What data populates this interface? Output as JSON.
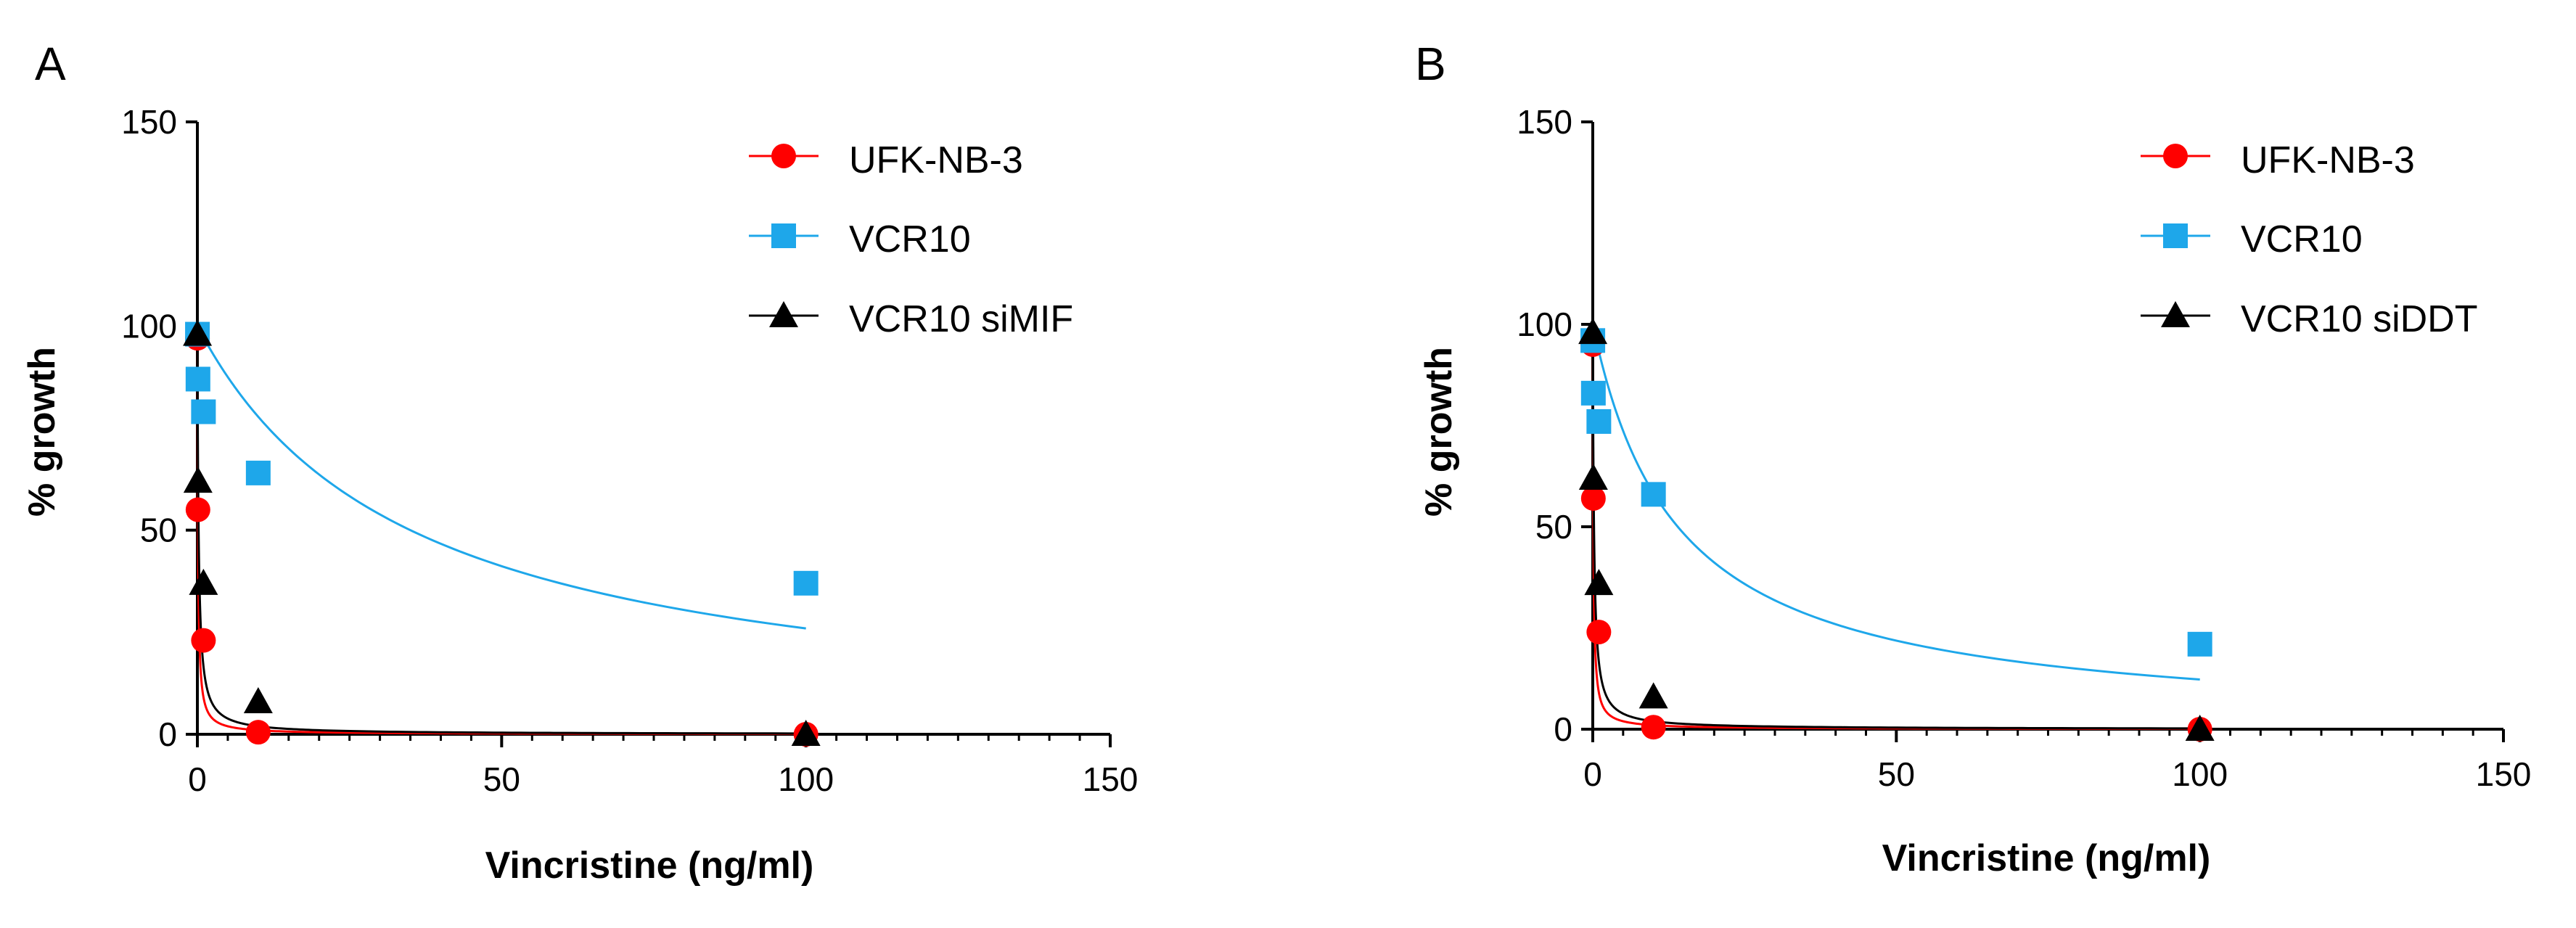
{
  "chart_data": [
    {
      "type": "scatter",
      "panel": "A",
      "xlabel": "Vincristine (ng/ml)",
      "ylabel": "% growth",
      "xlim": [
        0,
        150
      ],
      "ylim": [
        0,
        150
      ],
      "xticks": [
        0,
        50,
        100,
        150
      ],
      "yticks": [
        0,
        50,
        100,
        150
      ],
      "xtick_labels": [
        "0",
        "50",
        "100",
        "150"
      ],
      "ytick_labels": [
        "0",
        "50",
        "100",
        "150"
      ],
      "legend_position": "top-right",
      "series": [
        {
          "name": "UFK-NB-3",
          "marker": "circle",
          "color": "#ff0000",
          "ic50": 0.1,
          "x": [
            0.01,
            0.1,
            1,
            10,
            100
          ],
          "y": [
            97,
            55,
            23,
            0.5,
            0
          ]
        },
        {
          "name": "VCR10",
          "marker": "square",
          "color": "#1ea7ea",
          "ic50": 35,
          "x": [
            0.01,
            0.1,
            1,
            10,
            100
          ],
          "y": [
            98,
            87,
            79,
            64,
            37
          ]
        },
        {
          "name": "VCR10 siMIF",
          "marker": "triangle",
          "color": "#000000",
          "ic50": 0.2,
          "x": [
            0.01,
            0.1,
            1,
            10,
            100
          ],
          "y": [
            98,
            62,
            37,
            8,
            0
          ]
        }
      ]
    },
    {
      "type": "scatter",
      "panel": "B",
      "xlabel": "Vincristine (ng/ml)",
      "ylabel": "% growth",
      "xlim": [
        0,
        150
      ],
      "ylim": [
        0,
        150
      ],
      "xticks": [
        0,
        50,
        100,
        150
      ],
      "yticks": [
        0,
        50,
        100,
        150
      ],
      "xtick_labels": [
        "0",
        "50",
        "100",
        "150"
      ],
      "ytick_labels": [
        "0",
        "50",
        "100",
        "150"
      ],
      "legend_position": "top-right",
      "series": [
        {
          "name": "UFK-NB-3",
          "marker": "circle",
          "color": "#ff0000",
          "ic50": 0.1,
          "x": [
            0.01,
            0.1,
            1,
            10,
            100
          ],
          "y": [
            95,
            57,
            24,
            0.5,
            0
          ]
        },
        {
          "name": "VCR10",
          "marker": "square",
          "color": "#1ea7ea",
          "ic50": 14,
          "x": [
            0.01,
            0.1,
            1,
            10,
            100
          ],
          "y": [
            96,
            83,
            76,
            58,
            21
          ]
        },
        {
          "name": "VCR10 siDDT",
          "marker": "triangle",
          "color": "#000000",
          "ic50": 0.2,
          "x": [
            0.01,
            0.1,
            1,
            10,
            100
          ],
          "y": [
            98,
            62,
            36,
            8,
            0
          ]
        }
      ]
    }
  ]
}
